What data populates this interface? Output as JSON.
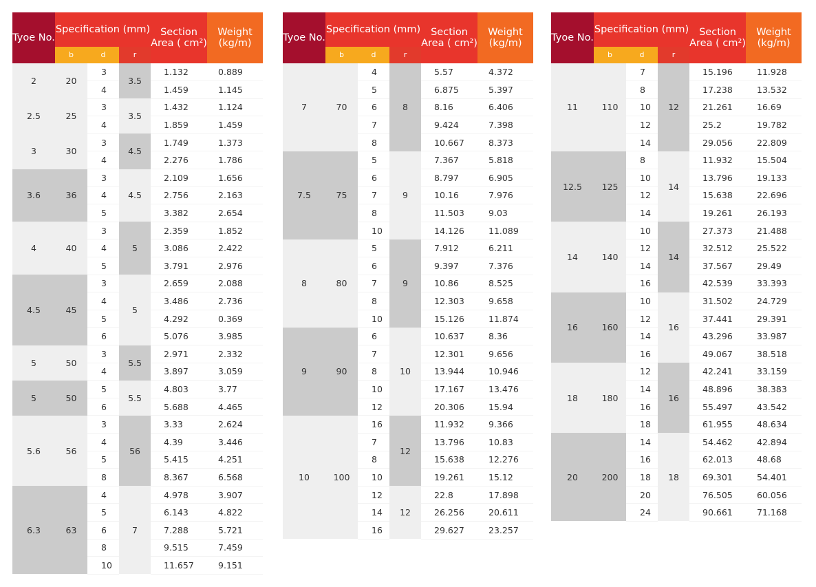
{
  "headers": {
    "type_no": "Tyoe No.",
    "specification": "Specification (mm)",
    "section_area": "Section Area ( cm²)",
    "weight": "Weight (kg/m)",
    "b": "b",
    "d": "d",
    "r": "r"
  },
  "tables": [
    {
      "groups": [
        {
          "type": "2",
          "b": "20",
          "r": "3.5",
          "rows": [
            {
              "d": "3",
              "area": "1.132",
              "weight": "0.889"
            },
            {
              "d": "4",
              "area": "1.459",
              "weight": "1.145"
            }
          ]
        },
        {
          "type": "2.5",
          "b": "25",
          "r": "3.5",
          "rows": [
            {
              "d": "3",
              "area": "1.432",
              "weight": "1.124"
            },
            {
              "d": "4",
              "area": "1.859",
              "weight": "1.459"
            }
          ]
        },
        {
          "type": "3",
          "b": "30",
          "r": "4.5",
          "rows": [
            {
              "d": "3",
              "area": "1.749",
              "weight": "1.373"
            },
            {
              "d": "4",
              "area": "2.276",
              "weight": "1.786"
            }
          ]
        },
        {
          "type": "3.6",
          "b": "36",
          "r": "4.5",
          "rows": [
            {
              "d": "3",
              "area": "2.109",
              "weight": "1.656"
            },
            {
              "d": "4",
              "area": "2.756",
              "weight": "2.163"
            },
            {
              "d": "5",
              "area": "3.382",
              "weight": "2.654"
            }
          ]
        },
        {
          "type": "4",
          "b": "40",
          "r": "5",
          "rows": [
            {
              "d": "3",
              "area": "2.359",
              "weight": "1.852"
            },
            {
              "d": "4",
              "area": "3.086",
              "weight": "2.422"
            },
            {
              "d": "5",
              "area": "3.791",
              "weight": "2.976"
            }
          ]
        },
        {
          "type": "4.5",
          "b": "45",
          "r": "5",
          "rows": [
            {
              "d": "3",
              "area": "2.659",
              "weight": "2.088"
            },
            {
              "d": "4",
              "area": "3.486",
              "weight": "2.736"
            },
            {
              "d": "5",
              "area": "4.292",
              "weight": "0.369"
            },
            {
              "d": "6",
              "area": "5.076",
              "weight": "3.985"
            }
          ]
        },
        {
          "type": "5",
          "b": "50",
          "r": "5.5",
          "rows": [
            {
              "d": "3",
              "area": "2.971",
              "weight": "2.332"
            },
            {
              "d": "4",
              "area": "3.897",
              "weight": "3.059"
            }
          ]
        },
        {
          "type": "5",
          "b": "50",
          "r": "5.5",
          "rows": [
            {
              "d": "5",
              "area": "4.803",
              "weight": "3.77"
            },
            {
              "d": "6",
              "area": "5.688",
              "weight": "4.465"
            }
          ]
        },
        {
          "type": "5.6",
          "b": "56",
          "r": "56",
          "rows": [
            {
              "d": "3",
              "area": "3.33",
              "weight": "2.624"
            },
            {
              "d": "4",
              "area": "4.39",
              "weight": "3.446"
            },
            {
              "d": "5",
              "area": "5.415",
              "weight": "4.251"
            },
            {
              "d": "8",
              "area": "8.367",
              "weight": "6.568"
            }
          ]
        },
        {
          "type": "6.3",
          "b": "63",
          "r": "7",
          "rows": [
            {
              "d": "4",
              "area": "4.978",
              "weight": "3.907"
            },
            {
              "d": "5",
              "area": "6.143",
              "weight": "4.822"
            },
            {
              "d": "6",
              "area": "7.288",
              "weight": "5.721"
            },
            {
              "d": "8",
              "area": "9.515",
              "weight": "7.459"
            },
            {
              "d": "10",
              "area": "11.657",
              "weight": "9.151"
            }
          ]
        }
      ]
    },
    {
      "groups": [
        {
          "type": "7",
          "b": "70",
          "r": "8",
          "rows": [
            {
              "d": "4",
              "area": "5.57",
              "weight": "4.372"
            },
            {
              "d": "5",
              "area": "6.875",
              "weight": "5.397"
            },
            {
              "d": "6",
              "area": "8.16",
              "weight": "6.406"
            },
            {
              "d": "7",
              "area": "9.424",
              "weight": "7.398"
            },
            {
              "d": "8",
              "area": "10.667",
              "weight": "8.373"
            }
          ]
        },
        {
          "type": "7.5",
          "b": "75",
          "r": "9",
          "rows": [
            {
              "d": "5",
              "area": "7.367",
              "weight": "5.818"
            },
            {
              "d": "6",
              "area": "8.797",
              "weight": "6.905"
            },
            {
              "d": "7",
              "area": "10.16",
              "weight": "7.976"
            },
            {
              "d": "8",
              "area": "11.503",
              "weight": "9.03"
            },
            {
              "d": "10",
              "area": "14.126",
              "weight": "11.089"
            }
          ]
        },
        {
          "type": "8",
          "b": "80",
          "r": "9",
          "rows": [
            {
              "d": "5",
              "area": "7.912",
              "weight": "6.211"
            },
            {
              "d": "6",
              "area": "9.397",
              "weight": "7.376"
            },
            {
              "d": "7",
              "area": "10.86",
              "weight": "8.525"
            },
            {
              "d": "8",
              "area": "12.303",
              "weight": "9.658"
            },
            {
              "d": "10",
              "area": "15.126",
              "weight": "11.874"
            }
          ]
        },
        {
          "type": "9",
          "b": "90",
          "r": "10",
          "rows": [
            {
              "d": "6",
              "area": "10.637",
              "weight": "8.36"
            },
            {
              "d": "7",
              "area": "12.301",
              "weight": "9.656"
            },
            {
              "d": "8",
              "area": "13.944",
              "weight": "10.946"
            },
            {
              "d": "10",
              "area": "17.167",
              "weight": "13.476"
            },
            {
              "d": "12",
              "area": "20.306",
              "weight": "15.94"
            }
          ]
        },
        {
          "type": "10",
          "b": "100",
          "r_groups": [
            {
              "r": "12",
              "rows": [
                {
                  "d": "16",
                  "area": "11.932",
                  "weight": "9.366"
                },
                {
                  "d": "7",
                  "area": "13.796",
                  "weight": "10.83"
                },
                {
                  "d": "8",
                  "area": "15.638",
                  "weight": "12.276"
                },
                {
                  "d": "10",
                  "area": "19.261",
                  "weight": "15.12"
                }
              ]
            },
            {
              "r": "12",
              "rows": [
                {
                  "d": "12",
                  "area": "22.8",
                  "weight": "17.898"
                },
                {
                  "d": "14",
                  "area": "26.256",
                  "weight": "20.611"
                },
                {
                  "d": "16",
                  "area": "29.627",
                  "weight": "23.257"
                }
              ]
            }
          ]
        }
      ]
    },
    {
      "groups": [
        {
          "type": "11",
          "b": "110",
          "r": "12",
          "rows": [
            {
              "d": "7",
              "area": "15.196",
              "weight": "11.928"
            },
            {
              "d": "8",
              "area": "17.238",
              "weight": "13.532"
            },
            {
              "d": "10",
              "area": "21.261",
              "weight": "16.69"
            },
            {
              "d": "12",
              "area": "25.2",
              "weight": "19.782"
            },
            {
              "d": "14",
              "area": "29.056",
              "weight": "22.809"
            }
          ]
        },
        {
          "type": "12.5",
          "b": "125",
          "r": "14",
          "rows": [
            {
              "d": "8",
              "area": "11.932",
              "weight": "15.504"
            },
            {
              "d": "10",
              "area": "13.796",
              "weight": "19.133"
            },
            {
              "d": "12",
              "area": "15.638",
              "weight": "22.696"
            },
            {
              "d": "14",
              "area": "19.261",
              "weight": "26.193"
            }
          ]
        },
        {
          "type": "14",
          "b": "140",
          "r": "14",
          "rows": [
            {
              "d": "10",
              "area": "27.373",
              "weight": "21.488"
            },
            {
              "d": "12",
              "area": "32.512",
              "weight": "25.522"
            },
            {
              "d": "14",
              "area": "37.567",
              "weight": "29.49"
            },
            {
              "d": "16",
              "area": "42.539",
              "weight": "33.393"
            }
          ]
        },
        {
          "type": "16",
          "b": "160",
          "r": "16",
          "rows": [
            {
              "d": "10",
              "area": "31.502",
              "weight": "24.729"
            },
            {
              "d": "12",
              "area": "37.441",
              "weight": "29.391"
            },
            {
              "d": "14",
              "area": "43.296",
              "weight": "33.987"
            },
            {
              "d": "16",
              "area": "49.067",
              "weight": "38.518"
            }
          ]
        },
        {
          "type": "18",
          "b": "180",
          "r": "16",
          "rows": [
            {
              "d": "12",
              "area": "42.241",
              "weight": "33.159"
            },
            {
              "d": "14",
              "area": "48.896",
              "weight": "38.383"
            },
            {
              "d": "16",
              "area": "55.497",
              "weight": "43.542"
            },
            {
              "d": "18",
              "area": "61.955",
              "weight": "48.634"
            }
          ]
        },
        {
          "type": "20",
          "b": "200",
          "r": "18",
          "rows": [
            {
              "d": "14",
              "area": "54.462",
              "weight": "42.894"
            },
            {
              "d": "16",
              "area": "62.013",
              "weight": "48.68"
            },
            {
              "d": "18",
              "area": "69.301",
              "weight": "54.401"
            },
            {
              "d": "20",
              "area": "76.505",
              "weight": "60.056"
            },
            {
              "d": "24",
              "area": "90.661",
              "weight": "71.168"
            }
          ]
        }
      ]
    }
  ]
}
